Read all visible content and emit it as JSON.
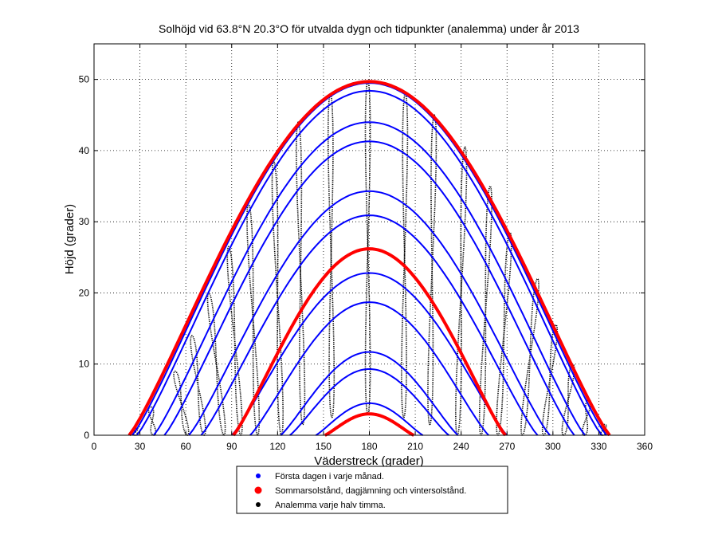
{
  "chart_data": {
    "type": "line",
    "title": "Solhöjd vid 63.8°N 20.3°O för utvalda dygn och tidpunkter (analemma) under år 2013",
    "xlabel": "Väderstreck (grader)",
    "ylabel": "Höjd (grader)",
    "xlim": [
      0,
      360
    ],
    "ylim": [
      0,
      55
    ],
    "xticks": [
      0,
      30,
      60,
      90,
      120,
      150,
      180,
      210,
      240,
      270,
      300,
      330,
      360
    ],
    "yticks": [
      0,
      10,
      20,
      30,
      40,
      50
    ],
    "grid": true,
    "colors": {
      "monthly": "#0000ff",
      "special": "#ff0000",
      "analemma": "#000000"
    },
    "series": [
      {
        "name": "Första dagen i varje månad.",
        "kind": "monthly",
        "days": [
          {
            "peak": 4.5,
            "az_rise": 145,
            "az_set": 215
          },
          {
            "peak": 9.3,
            "az_rise": 128,
            "az_set": 232
          },
          {
            "peak": 11.7,
            "az_rise": 122,
            "az_set": 238
          },
          {
            "peak": 18.7,
            "az_rise": 102,
            "az_set": 258
          },
          {
            "peak": 22.8,
            "az_rise": 90,
            "az_set": 270
          },
          {
            "peak": 30.9,
            "az_rise": 70,
            "az_set": 290
          },
          {
            "peak": 34.3,
            "az_rise": 62,
            "az_set": 298
          },
          {
            "peak": 41.3,
            "az_rise": 46,
            "az_set": 314
          },
          {
            "peak": 44.0,
            "az_rise": 39,
            "az_set": 321
          },
          {
            "peak": 48.4,
            "az_rise": 28,
            "az_set": 332
          },
          {
            "peak": 49.5,
            "az_rise": 25,
            "az_set": 335
          }
        ]
      },
      {
        "name": "Sommarsolstånd, dagjämning och vintersolstånd.",
        "kind": "special",
        "days": [
          {
            "peak": 3.0,
            "az_rise": 151,
            "az_set": 209
          },
          {
            "peak": 26.2,
            "az_rise": 91,
            "az_set": 269
          },
          {
            "peak": 49.7,
            "az_rise": 23,
            "az_set": 337
          }
        ]
      },
      {
        "name": "Analemma varje halv timma.",
        "kind": "analemma",
        "loops": [
          {
            "az": 27,
            "top": 1,
            "bottom": 0,
            "lean": 0
          },
          {
            "az": 38,
            "top": 4,
            "bottom": 0,
            "lean": -2
          },
          {
            "az": 57,
            "top": 9,
            "bottom": 0,
            "lean": -8
          },
          {
            "az": 68,
            "top": 14,
            "bottom": 0,
            "lean": -8
          },
          {
            "az": 80,
            "top": 20,
            "bottom": 0,
            "lean": -10
          },
          {
            "az": 92,
            "top": 26.5,
            "bottom": 0,
            "lean": -8
          },
          {
            "az": 104,
            "top": 32.5,
            "bottom": 0,
            "lean": -6
          },
          {
            "az": 120,
            "top": 38.5,
            "bottom": 0,
            "lean": -5
          },
          {
            "az": 135,
            "top": 44,
            "bottom": 1.5,
            "lean": -3
          },
          {
            "az": 155,
            "top": 48,
            "bottom": 2.5,
            "lean": -1
          },
          {
            "az": 179,
            "top": 49.7,
            "bottom": 3,
            "lean": 0
          },
          {
            "az": 203,
            "top": 48,
            "bottom": 2.5,
            "lean": 1
          },
          {
            "az": 221,
            "top": 45,
            "bottom": 1.5,
            "lean": 3
          },
          {
            "az": 240,
            "top": 40.5,
            "bottom": 0,
            "lean": 5
          },
          {
            "az": 256,
            "top": 35,
            "bottom": 0,
            "lean": 6
          },
          {
            "az": 268,
            "top": 28.5,
            "bottom": 0,
            "lean": 8
          },
          {
            "az": 285,
            "top": 22,
            "bottom": 0,
            "lean": 10
          },
          {
            "az": 298,
            "top": 15.5,
            "bottom": 0,
            "lean": 8
          },
          {
            "az": 310,
            "top": 10,
            "bottom": 0,
            "lean": 6
          },
          {
            "az": 322,
            "top": 5,
            "bottom": 0,
            "lean": 3
          },
          {
            "az": 333,
            "top": 1.5,
            "bottom": 0,
            "lean": 1
          }
        ]
      }
    ],
    "legend": {
      "position": "bottom-outside",
      "entries": [
        {
          "label": "Första dagen i varje månad.",
          "color": "#0000ff"
        },
        {
          "label": "Sommarsolstånd, dagjämning och vintersolstånd.",
          "color": "#ff0000"
        },
        {
          "label": "Analemma varje halv timma.",
          "color": "#000000"
        }
      ]
    }
  }
}
